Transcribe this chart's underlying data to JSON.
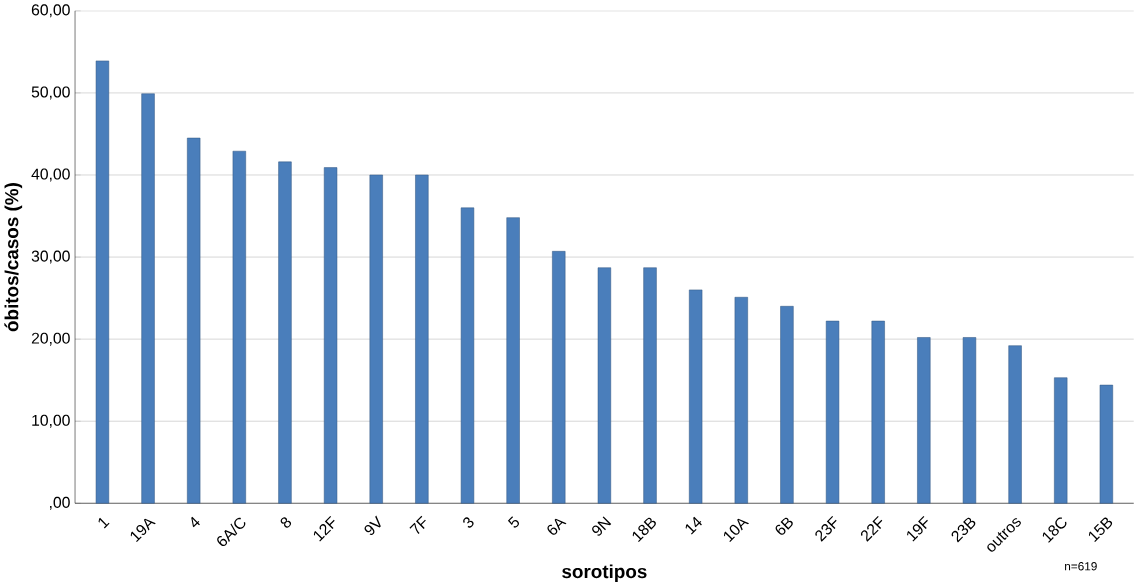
{
  "chart_data": {
    "type": "bar",
    "xlabel": "sorotipos",
    "ylabel": "óbitos/casos (%)",
    "categories": [
      "1",
      "19A",
      "4",
      "6A/C",
      "8",
      "12F",
      "9V",
      "7F",
      "3",
      "5",
      "6A",
      "9N",
      "18B",
      "14",
      "10A",
      "6B",
      "23F",
      "22F",
      "19F",
      "23B",
      "outros",
      "18C",
      "15B"
    ],
    "values": [
      53.9,
      49.9,
      44.5,
      42.9,
      41.6,
      40.9,
      40.0,
      40.0,
      36.0,
      34.8,
      30.7,
      28.7,
      28.7,
      26.0,
      25.1,
      24.0,
      22.2,
      22.2,
      20.2,
      20.2,
      19.2,
      15.3,
      14.4
    ],
    "color": "#4a7ebb",
    "ylim": [
      0,
      60
    ],
    "yticks": [
      {
        "value": 0,
        "label": ",00"
      },
      {
        "value": 10,
        "label": "10,00"
      },
      {
        "value": 20,
        "label": "20,00"
      },
      {
        "value": 30,
        "label": "30,00"
      },
      {
        "value": 40,
        "label": "40,00"
      },
      {
        "value": 50,
        "label": "50,00"
      },
      {
        "value": 60,
        "label": "60,00"
      }
    ],
    "grid": "y",
    "annotations": [
      "n=619"
    ]
  }
}
